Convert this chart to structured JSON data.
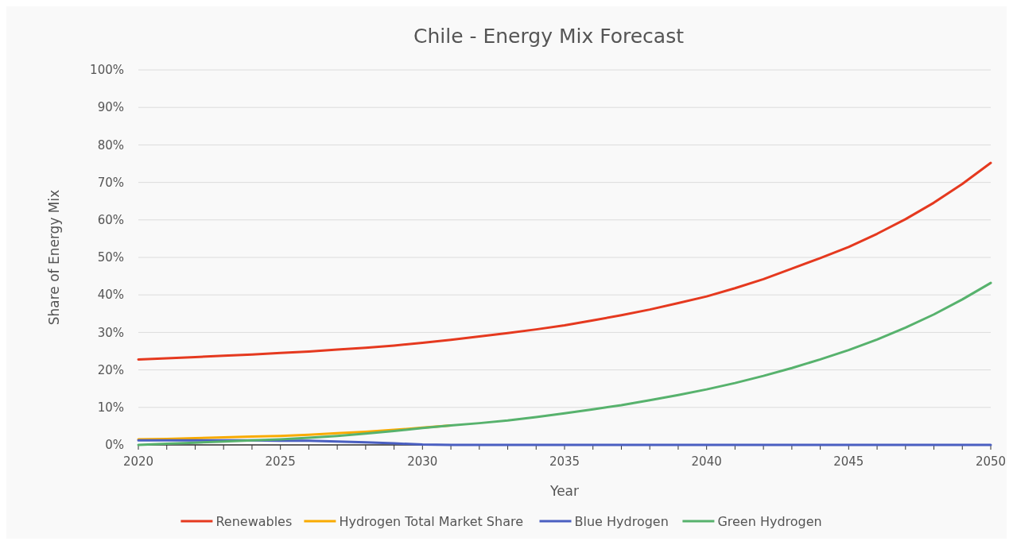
{
  "chart_data": {
    "type": "line",
    "title": "Chile - Energy Mix Forecast",
    "xlabel": "Year",
    "ylabel": "Share of Energy Mix",
    "x": [
      2020,
      2021,
      2022,
      2023,
      2024,
      2025,
      2026,
      2027,
      2028,
      2029,
      2030,
      2031,
      2032,
      2033,
      2034,
      2035,
      2036,
      2037,
      2038,
      2039,
      2040,
      2041,
      2042,
      2043,
      2044,
      2045,
      2046,
      2047,
      2048,
      2049,
      2050
    ],
    "series": [
      {
        "name": "Renewables",
        "color": "#e5391f",
        "values": [
          22.8,
          23.1,
          23.4,
          23.8,
          24.1,
          24.5,
          24.9,
          25.4,
          25.9,
          26.5,
          27.2,
          28.0,
          28.9,
          29.8,
          30.8,
          31.9,
          33.2,
          34.6,
          36.1,
          37.8,
          39.6,
          41.8,
          44.2,
          47.0,
          49.8,
          52.8,
          56.3,
          60.2,
          64.6,
          69.6,
          75.2
        ]
      },
      {
        "name": "Hydrogen Total Market Share",
        "color": "#f9ab00",
        "values": [
          1.5,
          1.6,
          1.8,
          2.0,
          2.2,
          2.4,
          2.7,
          3.1,
          3.5,
          4.0,
          4.6,
          5.2,
          null,
          null,
          null,
          null,
          null,
          null,
          null,
          null,
          null,
          null,
          null,
          null,
          null,
          null,
          null,
          null,
          null,
          null,
          null
        ]
      },
      {
        "name": "Blue Hydrogen",
        "color": "#4a5fc1",
        "values": [
          1.2,
          1.2,
          1.2,
          1.2,
          1.2,
          1.1,
          1.1,
          0.9,
          0.7,
          0.4,
          0.1,
          0,
          0,
          0,
          0,
          0,
          0,
          0,
          0,
          0,
          0,
          0,
          0,
          0,
          0,
          0,
          0,
          0,
          0,
          0,
          0
        ]
      },
      {
        "name": "Green Hydrogen",
        "color": "#57b26d",
        "values": [
          0,
          0.3,
          0.6,
          0.9,
          1.2,
          1.5,
          1.9,
          2.4,
          3.0,
          3.7,
          4.5,
          5.2,
          5.8,
          6.5,
          7.4,
          8.4,
          9.5,
          10.6,
          11.9,
          13.3,
          14.8,
          16.5,
          18.4,
          20.5,
          22.8,
          25.3,
          28.1,
          31.3,
          34.8,
          38.8,
          43.2
        ]
      }
    ],
    "xlim": [
      2020,
      2050
    ],
    "xticks": [
      2020,
      {
        "value": 2021,
        "label": null
      },
      {
        "value": 2022,
        "label": null
      },
      {
        "value": 2023,
        "label": null
      },
      {
        "value": 2024,
        "label": null
      },
      2025,
      {
        "value": 2026,
        "label": null
      },
      {
        "value": 2027,
        "label": null
      },
      {
        "value": 2028,
        "label": null
      },
      {
        "value": 2029,
        "label": null
      },
      2030,
      {
        "value": 2031,
        "label": null
      },
      {
        "value": 2032,
        "label": null
      },
      {
        "value": 2033,
        "label": null
      },
      {
        "value": 2034,
        "label": null
      },
      2035,
      {
        "value": 2036,
        "label": null
      },
      {
        "value": 2037,
        "label": null
      },
      {
        "value": 2038,
        "label": null
      },
      {
        "value": 2039,
        "label": null
      },
      2040,
      {
        "value": 2041,
        "label": null
      },
      {
        "value": 2042,
        "label": null
      },
      {
        "value": 2043,
        "label": null
      },
      {
        "value": 2044,
        "label": null
      },
      2045,
      {
        "value": 2046,
        "label": null
      },
      {
        "value": 2047,
        "label": null
      },
      {
        "value": 2048,
        "label": null
      },
      {
        "value": 2049,
        "label": null
      },
      2050
    ],
    "ylim": [
      0,
      100
    ],
    "yticks": [
      {
        "value": 0,
        "label": "0%"
      },
      {
        "value": 10,
        "label": "10%"
      },
      {
        "value": 20,
        "label": "20%"
      },
      {
        "value": 30,
        "label": "30%"
      },
      {
        "value": 40,
        "label": "40%"
      },
      {
        "value": 50,
        "label": "50%"
      },
      {
        "value": 60,
        "label": "60%"
      },
      {
        "value": 70,
        "label": "70%"
      },
      {
        "value": 80,
        "label": "80%"
      },
      {
        "value": 90,
        "label": "90%"
      },
      {
        "value": 100,
        "label": "100%"
      }
    ],
    "grid": "y",
    "legend": "bottom",
    "marker": "none",
    "line_style": "solid"
  }
}
